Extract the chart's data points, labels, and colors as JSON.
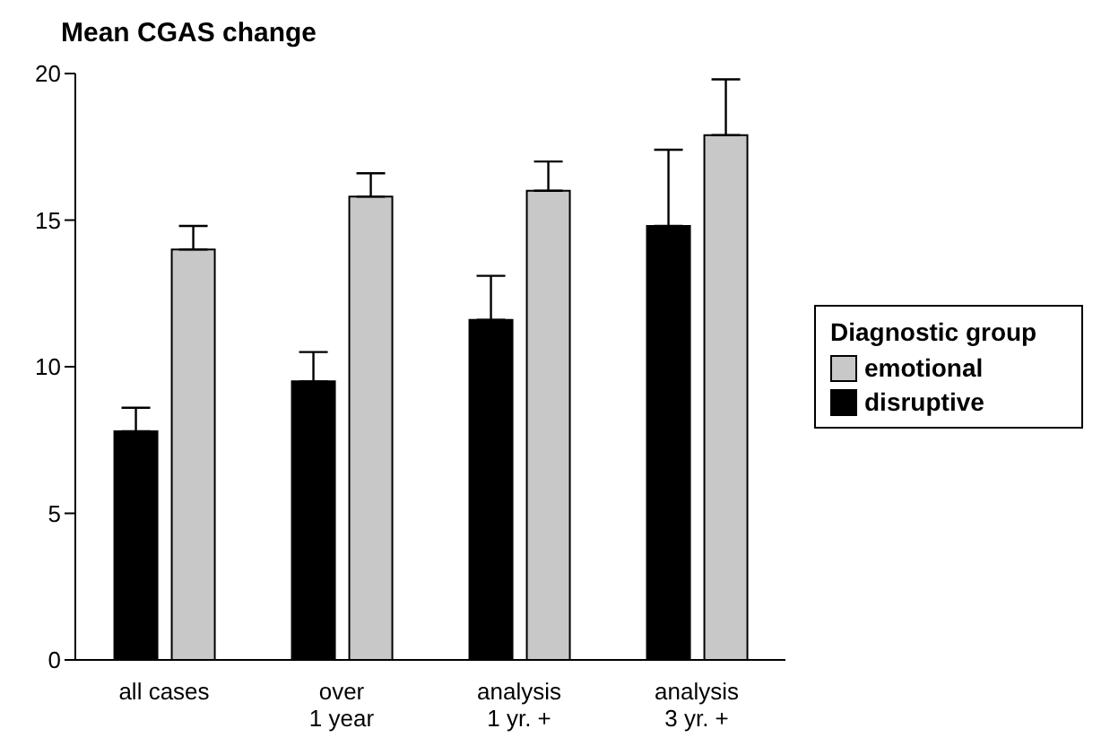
{
  "chart_data": {
    "type": "bar",
    "ylabel": "Mean CGAS change",
    "legend_title": "Diagnostic group",
    "categories": [
      "all cases",
      "over\n1 year",
      "analysis\n1 yr. +",
      "analysis\n3 yr. +"
    ],
    "series": [
      {
        "name": "disruptive",
        "color": "#000000",
        "values": [
          7.8,
          9.5,
          11.6,
          14.8
        ],
        "errors": [
          [
            7.8,
            8.6
          ],
          [
            9.5,
            10.5
          ],
          [
            11.6,
            13.1
          ],
          [
            14.8,
            17.4
          ]
        ]
      },
      {
        "name": "emotional",
        "color": "#c8c8c8",
        "values": [
          14,
          15.8,
          16,
          17.9
        ],
        "errors": [
          [
            14,
            14.8
          ],
          [
            15.8,
            16.6
          ],
          [
            16,
            17
          ],
          [
            17.9,
            19.8
          ]
        ]
      }
    ],
    "ylim": [
      0,
      20
    ],
    "yticks": [
      0,
      5,
      10,
      15,
      20
    ],
    "grid": false,
    "legend": "right"
  }
}
